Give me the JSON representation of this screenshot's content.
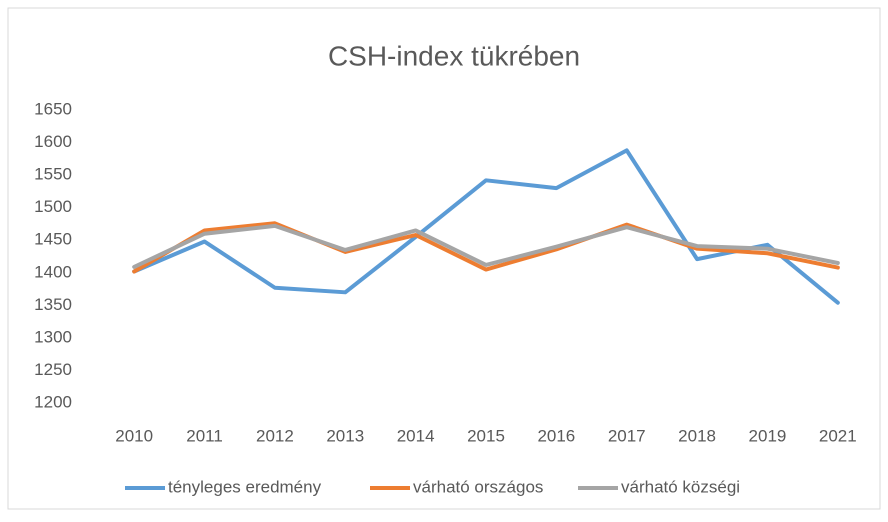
{
  "chart_data": {
    "type": "line",
    "title": "CSH-index tükrében",
    "categories": [
      "2010",
      "2011",
      "2012",
      "2013",
      "2014",
      "2015",
      "2016",
      "2017",
      "2018",
      "2019",
      "2021"
    ],
    "series": [
      {
        "name": "tényleges eredmény",
        "color": "#5b9bd5",
        "values": [
          1402,
          1448,
          1377,
          1370,
          1455,
          1542,
          1530,
          1588,
          1421,
          1443,
          1354
        ]
      },
      {
        "name": "várható országos",
        "color": "#ed7d31",
        "values": [
          1402,
          1465,
          1476,
          1432,
          1458,
          1405,
          1436,
          1474,
          1437,
          1430,
          1408
        ]
      },
      {
        "name": "várható községi",
        "color": "#a5a5a5",
        "values": [
          1409,
          1460,
          1472,
          1435,
          1465,
          1412,
          1440,
          1470,
          1441,
          1437,
          1415
        ]
      }
    ],
    "ylim": [
      1200,
      1650
    ],
    "yticks": [
      1200,
      1250,
      1300,
      1350,
      1400,
      1450,
      1500,
      1550,
      1600,
      1650
    ],
    "grid": false,
    "legend": "bottom"
  }
}
